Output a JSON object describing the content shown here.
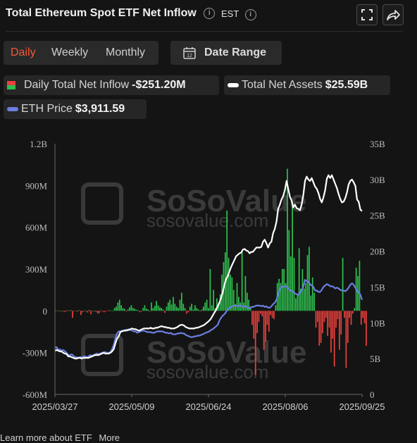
{
  "header": {
    "title": "Total Ethereum Spot ETF Net Inflow",
    "timezone": "EST"
  },
  "controls": {
    "tabs": [
      {
        "label": "Daily",
        "active": true
      },
      {
        "label": "Weekly",
        "active": false
      },
      {
        "label": "Monthly",
        "active": false
      }
    ],
    "date_range_label": "Date Range",
    "calendar_day": "12"
  },
  "legend": {
    "daily_inflow_label": "Daily Total Net Inflow",
    "daily_inflow_value": "-$251.20M",
    "total_assets_label": "Total Net Assets",
    "total_assets_value": "$25.59B",
    "eth_price_label": "ETH Price",
    "eth_price_value": "$3,911.59"
  },
  "watermark": {
    "brand": "SoSoValue",
    "url": "sosovalue.com"
  },
  "colors": {
    "inflow_positive": "#2ec04e",
    "inflow_negative": "#e8413d",
    "total_assets": "#ffffff",
    "eth_price": "#6a7fe0",
    "accent": "#f05a3a"
  },
  "chart_data": {
    "type": "bar",
    "x_tick_labels": [
      "2025/03/27",
      "2025/05/09",
      "2025/06/24",
      "2025/08/06",
      "2025/09/25"
    ],
    "left_axis": {
      "ticks": [
        "-600M",
        "-300M",
        "0",
        "300M",
        "600M",
        "900M",
        "1.2B"
      ],
      "range": [
        -600,
        1200
      ],
      "unit": "M USD"
    },
    "right_axis": {
      "ticks": [
        "0",
        "5B",
        "10B",
        "15B",
        "20B",
        "25B",
        "30B",
        "35B"
      ],
      "range": [
        0,
        35
      ],
      "unit": "B USD"
    },
    "grid": false,
    "days": 183,
    "series": [
      {
        "name": "Daily Total Net Inflow",
        "kind": "bar",
        "values": [
          3,
          -4,
          2,
          -5,
          1,
          -8,
          -6,
          4,
          -2,
          5,
          -50,
          -3,
          2,
          -6,
          4,
          -30,
          -10,
          3,
          -5,
          -12,
          6,
          -25,
          -4,
          2,
          -8,
          -20,
          -15,
          3,
          -6,
          -10,
          -4,
          -2,
          5,
          -3,
          2,
          20,
          30,
          60,
          80,
          40,
          20,
          15,
          -5,
          10,
          25,
          40,
          20,
          15,
          8,
          5,
          -10,
          -6,
          20,
          40,
          15,
          10,
          -5,
          60,
          20,
          35,
          70,
          40,
          25,
          20,
          10,
          -15,
          30,
          60,
          80,
          45,
          100,
          50,
          30,
          20,
          80,
          130,
          50,
          20,
          -20,
          -10,
          30,
          50,
          10,
          40,
          20,
          10,
          -5,
          10,
          30,
          60,
          80,
          20,
          300,
          40,
          150,
          20,
          90,
          60,
          120,
          260,
          350,
          420,
          720,
          380,
          260,
          240,
          150,
          50,
          200,
          100,
          60,
          420,
          60,
          250,
          130,
          80,
          30,
          -100,
          -200,
          -460,
          -160,
          -80,
          -20,
          -40,
          -280,
          -220,
          -100,
          -150,
          -30,
          -50,
          -60,
          40,
          200,
          230,
          200,
          300,
          300,
          200,
          1020,
          580,
          390,
          750,
          380,
          90,
          120,
          450,
          160,
          300,
          160,
          200,
          400,
          460,
          110,
          240,
          130,
          -120,
          -80,
          -250,
          -230,
          -160,
          -80,
          -50,
          -180,
          -120,
          -300,
          -200,
          -400,
          -120,
          -60,
          -280,
          -170,
          380,
          -50,
          -410,
          -230,
          -50,
          -100,
          -20,
          20,
          310,
          250,
          360,
          -100,
          -50,
          -90,
          -251.2
        ]
      },
      {
        "name": "Total Net Assets",
        "kind": "line",
        "unit": "B",
        "values": [
          6.1,
          6.2,
          6.1,
          6.0,
          6.0,
          5.8,
          5.7,
          5.6,
          5.3,
          5.3,
          5.2,
          5.1,
          5.0,
          5.0,
          5.1,
          5.1,
          5.0,
          5.1,
          5.1,
          5.1,
          5.1,
          5.2,
          5.3,
          5.4,
          5.5,
          5.5,
          5.5,
          5.6,
          5.7,
          5.8,
          5.7,
          5.7,
          5.7,
          5.8,
          6.0,
          6.3,
          7.1,
          7.8,
          8.1,
          8.7,
          8.8,
          8.9,
          8.9,
          9.0,
          9.0,
          9.1,
          9.2,
          9.1,
          9.1,
          9.0,
          8.9,
          9.0,
          9.1,
          9.2,
          9.2,
          9.2,
          9.2,
          9.3,
          9.2,
          9.2,
          9.3,
          9.3,
          9.4,
          9.5,
          9.5,
          9.4,
          9.4,
          9.3,
          9.3,
          9.2,
          9.2,
          9.2,
          9.3,
          9.4,
          9.6,
          9.7,
          9.7,
          9.6,
          9.4,
          9.3,
          9.2,
          9.2,
          9.2,
          9.2,
          9.3,
          9.3,
          9.4,
          9.5,
          9.6,
          9.7,
          9.9,
          10.1,
          10.3,
          10.6,
          11.0,
          11.4,
          11.8,
          12.3,
          12.8,
          13.5,
          14.3,
          15.3,
          16.1,
          16.5,
          17.2,
          17.8,
          18.3,
          18.8,
          19.3,
          19.5,
          19.7,
          19.8,
          20.2,
          20.3,
          20.1,
          20.0,
          19.7,
          19.9,
          19.9,
          20.2,
          20.5,
          20.5,
          20.5,
          20.6,
          21.3,
          21.6,
          21.1,
          20.5,
          21.1,
          21.3,
          22.5,
          23.1,
          24.1,
          25.9,
          26.5,
          27.2,
          27.7,
          28.5,
          29.8,
          28.7,
          27.6,
          27.1,
          26.1,
          26.5,
          26.0,
          25.9,
          25.7,
          26.5,
          27.8,
          29.8,
          30.4,
          30.0,
          29.8,
          30.2,
          29.6,
          29.0,
          28.7,
          28.1,
          27.3,
          26.8,
          27.5,
          28.5,
          30.1,
          30.6,
          30.2,
          30.6,
          30.0,
          29.4,
          28.8,
          28.0,
          27.3,
          26.8,
          26.9,
          27.4,
          28.2,
          29.3,
          29.8,
          30.0,
          29.6,
          29.1,
          27.2,
          26.9,
          25.8,
          25.6
        ]
      },
      {
        "name": "ETH Price",
        "kind": "line",
        "unit": "B-scale",
        "values": [
          6.5,
          6.6,
          6.2,
          6.3,
          6.1,
          6.2,
          6.0,
          5.8,
          5.5,
          5.5,
          5.6,
          5.4,
          5.2,
          5.2,
          5.1,
          5.2,
          5.2,
          5.3,
          5.3,
          5.2,
          5.3,
          5.5,
          5.4,
          5.5,
          5.6,
          5.7,
          5.6,
          5.7,
          5.8,
          5.9,
          5.9,
          5.8,
          5.8,
          5.9,
          6.3,
          6.9,
          7.8,
          8.5,
          8.8,
          8.8,
          8.9,
          8.9,
          9.0,
          8.9,
          9.1,
          9.0,
          8.9,
          8.8,
          8.8,
          8.6,
          8.7,
          8.8,
          8.9,
          8.9,
          8.8,
          8.7,
          8.7,
          8.7,
          8.6,
          8.6,
          8.7,
          8.8,
          8.8,
          8.8,
          8.8,
          8.7,
          8.6,
          8.6,
          8.5,
          8.6,
          8.4,
          8.4,
          8.4,
          8.5,
          8.5,
          8.6,
          8.5,
          8.5,
          8.3,
          8.2,
          8.1,
          8.0,
          8.0,
          8.1,
          8.1,
          8.2,
          8.2,
          8.3,
          8.4,
          8.5,
          8.6,
          8.7,
          8.8,
          9.0,
          9.1,
          9.3,
          9.5,
          9.7,
          10.3,
          10.7,
          11.0,
          11.2,
          11.5,
          11.9,
          12.1,
          12.2,
          12.3,
          12.4,
          12.4,
          12.3,
          12.4,
          12.4,
          12.2,
          12.3,
          12.3,
          12.1,
          12.0,
          12.2,
          12.2,
          12.3,
          12.4,
          12.4,
          12.4,
          12.3,
          12.4,
          12.2,
          12.3,
          12.1,
          12.1,
          12.3,
          12.6,
          12.8,
          13.2,
          14.0,
          14.7,
          15.0,
          15.0,
          15.1,
          15.1,
          14.8,
          14.5,
          14.5,
          14.3,
          14.1,
          14.0,
          13.9,
          14.2,
          14.5,
          15.0,
          16.0,
          15.8,
          15.7,
          15.4,
          15.2,
          15.0,
          14.5,
          14.5,
          14.3,
          14.3,
          14.6,
          15.0,
          15.2,
          15.4,
          15.3,
          15.1,
          15.1,
          15.0,
          14.8,
          14.9,
          14.8,
          14.6,
          14.5,
          14.5,
          14.4,
          14.6,
          14.9,
          15.3,
          15.5,
          15.3,
          14.9,
          14.4,
          14.3,
          13.9,
          13.2
        ]
      }
    ]
  },
  "footer": {
    "text": "Learn more about ETF",
    "more": "More"
  }
}
